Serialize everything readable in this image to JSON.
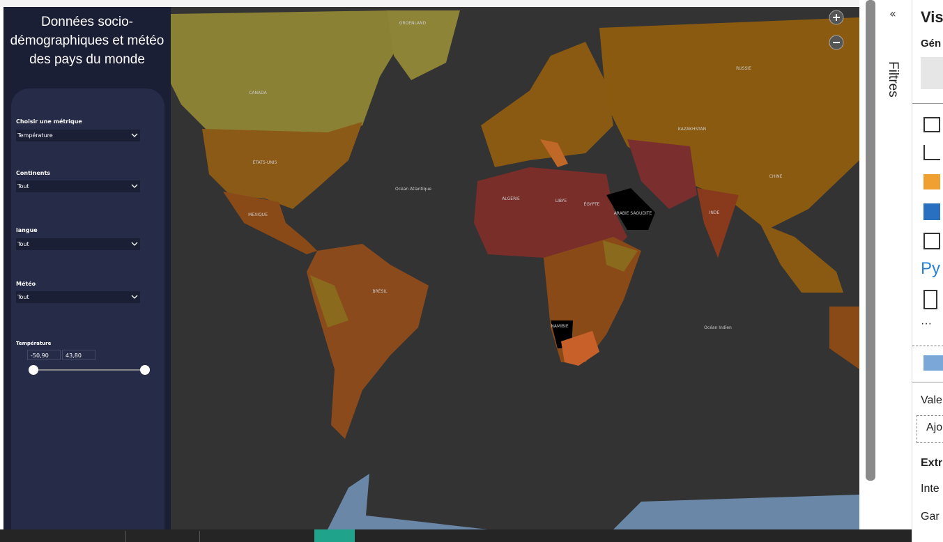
{
  "report": {
    "title": "Données socio-démographiques et météo des pays du monde",
    "slicers": [
      {
        "label": "Choisir une métrique",
        "value": "Température"
      },
      {
        "label": "Continents",
        "value": "Tout"
      },
      {
        "label": "langue",
        "value": "Tout"
      },
      {
        "label": "Météo",
        "value": "Tout"
      }
    ],
    "range": {
      "label": "Température",
      "min": "-50,90",
      "max": "43,80"
    }
  },
  "map": {
    "labels": [
      "CANADA",
      "ÉTATS-UNIS",
      "Océan Atlantique",
      "BRÉSIL",
      "RUSSIE",
      "KAZAKHSTAN",
      "CHINE",
      "INDE",
      "ALGÉRIE",
      "LIBYE",
      "ÉGYPTE",
      "ARABIE SAOUDITE",
      "NAMIBIE",
      "Océan Indien",
      "GROENLAND",
      "MEXIQUE"
    ]
  },
  "filters_pane": {
    "label": "Filtres"
  },
  "visualizations_pane": {
    "title": "Vis",
    "section": "Gén",
    "python": "Py",
    "values": "Vale",
    "add": "Ajo",
    "extract": "Extr",
    "interact": "Inte",
    "keep": "Gar"
  }
}
